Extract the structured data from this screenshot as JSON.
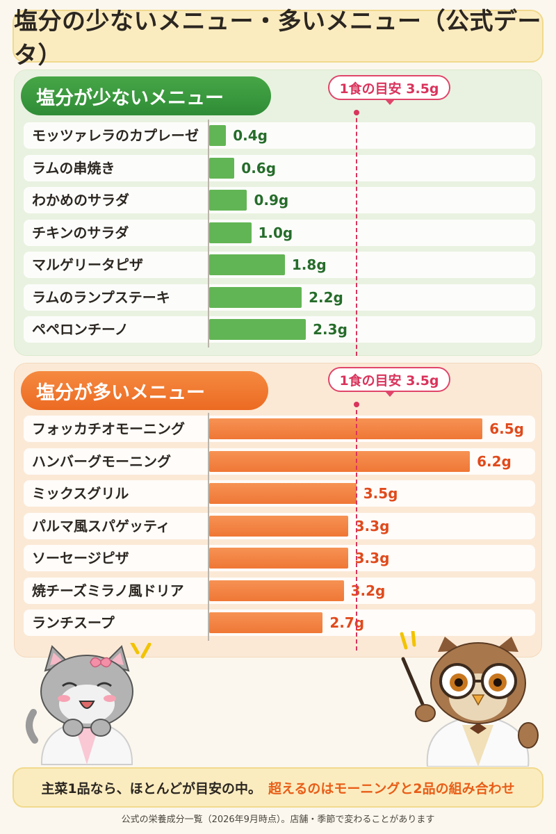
{
  "title": "塩分の少ないメニュー・多いメニュー（公式データ）",
  "reference": {
    "label": "1食の目安 3.5g",
    "value": 3.5
  },
  "colors": {
    "low_bar": "#62b554",
    "high_bar": "#ef7735",
    "reference_line": "#d9345c"
  },
  "chart_data": [
    {
      "type": "bar",
      "title": "塩分が少ないメニュー",
      "orientation": "horizontal",
      "unit": "g",
      "categories": [
        "モッツァレラのカプレーゼ",
        "ラムの串焼き",
        "わかめのサラダ",
        "チキンのサラダ",
        "マルゲリータピザ",
        "ラムのランプステーキ",
        "ペペロンチーノ"
      ],
      "values": [
        0.4,
        0.6,
        0.9,
        1.0,
        1.8,
        2.2,
        2.3
      ],
      "value_labels": [
        "0.4g",
        "0.6g",
        "0.9g",
        "1.0g",
        "1.8g",
        "2.2g",
        "2.3g"
      ],
      "xlim": [
        0,
        7
      ],
      "grid": false
    },
    {
      "type": "bar",
      "title": "塩分が多いメニュー",
      "orientation": "horizontal",
      "unit": "g",
      "categories": [
        "フォッカチオモーニング",
        "ハンバーグモーニング",
        "ミックスグリル",
        "パルマ風スパゲッティ",
        "ソーセージピザ",
        "焼チーズミラノ風ドリア",
        "ランチスープ"
      ],
      "values": [
        6.5,
        6.2,
        3.5,
        3.3,
        3.3,
        3.2,
        2.7
      ],
      "value_labels": [
        "6.5g",
        "6.2g",
        "3.5g",
        "3.3g",
        "3.3g",
        "3.2g",
        "2.7g"
      ],
      "xlim": [
        0,
        7
      ],
      "grid": false
    }
  ],
  "footer": {
    "part1": "主菜1品なら、ほとんどが目安の中。",
    "part2": "超えるのはモーニングと2品の組み合わせ"
  },
  "note": "公式の栄養成分一覧（2026年9月時点）。店舗・季節で変わることがあります",
  "icons": [
    "cat-mascot-icon",
    "owl-professor-mascot-icon",
    "pointer-stick-icon"
  ]
}
